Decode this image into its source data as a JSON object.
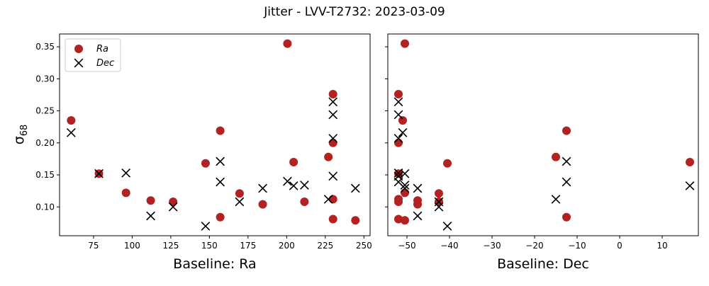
{
  "figure": {
    "title": "Jitter - LVV-T2732: 2023-03-09",
    "ylabel_main": "σ",
    "ylabel_sub": "68"
  },
  "colors": {
    "ra": "#b22222",
    "dec": "#000000"
  },
  "legend": {
    "placement": "upper-left",
    "entries": [
      "Ra",
      "Dec"
    ]
  },
  "chart_data": [
    {
      "type": "scatter",
      "xlabel": "Baseline: Ra",
      "ylabel": "σ68",
      "xlim": [
        53,
        254
      ],
      "ylim": [
        0.055,
        0.37
      ],
      "xticks": [
        75,
        100,
        125,
        150,
        175,
        200,
        225,
        250
      ],
      "xtick_labels": [
        "75",
        "100",
        "125",
        "150",
        "175",
        "200",
        "225",
        "250"
      ],
      "yticks": [
        0.1,
        0.15,
        0.2,
        0.25,
        0.3,
        0.35
      ],
      "ytick_labels": [
        "0.10",
        "0.15",
        "0.20",
        "0.25",
        "0.30",
        "0.35"
      ],
      "series": [
        {
          "name": "Ra",
          "marker": "circle",
          "points": [
            [
              60.5,
              0.235
            ],
            [
              78.5,
              0.152
            ],
            [
              96,
              0.122
            ],
            [
              112,
              0.11
            ],
            [
              126.5,
              0.108
            ],
            [
              147.5,
              0.168
            ],
            [
              157,
              0.219
            ],
            [
              157,
              0.084
            ],
            [
              169.5,
              0.121
            ],
            [
              184.5,
              0.104
            ],
            [
              200.5,
              0.355
            ],
            [
              204.5,
              0.17
            ],
            [
              211.5,
              0.108
            ],
            [
              227,
              0.178
            ],
            [
              230,
              0.276
            ],
            [
              230,
              0.2
            ],
            [
              230,
              0.112
            ],
            [
              230,
              0.081
            ],
            [
              244.5,
              0.079
            ]
          ]
        },
        {
          "name": "Dec",
          "marker": "x",
          "points": [
            [
              60.5,
              0.216
            ],
            [
              78.5,
              0.152
            ],
            [
              96,
              0.153
            ],
            [
              112,
              0.086
            ],
            [
              126.5,
              0.1
            ],
            [
              147.5,
              0.07
            ],
            [
              157,
              0.171
            ],
            [
              157,
              0.139
            ],
            [
              169.5,
              0.108
            ],
            [
              184.5,
              0.129
            ],
            [
              200.5,
              0.14
            ],
            [
              204.5,
              0.133
            ],
            [
              211.5,
              0.134
            ],
            [
              227,
              0.112
            ],
            [
              230,
              0.264
            ],
            [
              230,
              0.244
            ],
            [
              230,
              0.207
            ],
            [
              230,
              0.148
            ],
            [
              244.5,
              0.129
            ]
          ]
        }
      ]
    },
    {
      "type": "scatter",
      "xlabel": "Baseline: Dec",
      "ylabel": "",
      "xlim": [
        -54.5,
        18.5
      ],
      "ylim": [
        0.055,
        0.37
      ],
      "xticks": [
        -50,
        -40,
        -30,
        -20,
        -10,
        0,
        10
      ],
      "xtick_labels": [
        "−50",
        "−40",
        "−30",
        "−20",
        "−10",
        "0",
        "10"
      ],
      "yticks": [
        0.1,
        0.15,
        0.2,
        0.25,
        0.3,
        0.35
      ],
      "ytick_labels": [],
      "series": [
        {
          "name": "Ra",
          "marker": "circle",
          "points": [
            [
              -52,
              0.276
            ],
            [
              -52,
              0.2
            ],
            [
              -52,
              0.152
            ],
            [
              -52,
              0.112
            ],
            [
              -52,
              0.108
            ],
            [
              -52,
              0.081
            ],
            [
              -51,
              0.235
            ],
            [
              -50.5,
              0.355
            ],
            [
              -50.5,
              0.122
            ],
            [
              -50.5,
              0.079
            ],
            [
              -47.5,
              0.11
            ],
            [
              -47.5,
              0.104
            ],
            [
              -42.5,
              0.121
            ],
            [
              -42.5,
              0.108
            ],
            [
              -40.5,
              0.168
            ],
            [
              -15,
              0.178
            ],
            [
              -12.5,
              0.219
            ],
            [
              -12.5,
              0.084
            ],
            [
              16.5,
              0.17
            ]
          ]
        },
        {
          "name": "Dec",
          "marker": "x",
          "points": [
            [
              -52,
              0.264
            ],
            [
              -52,
              0.244
            ],
            [
              -52,
              0.207
            ],
            [
              -52,
              0.153
            ],
            [
              -52,
              0.148
            ],
            [
              -52,
              0.139
            ],
            [
              -51,
              0.216
            ],
            [
              -50.5,
              0.152
            ],
            [
              -50.5,
              0.134
            ],
            [
              -50.5,
              0.129
            ],
            [
              -47.5,
              0.129
            ],
            [
              -47.5,
              0.086
            ],
            [
              -42.5,
              0.108
            ],
            [
              -42.5,
              0.1
            ],
            [
              -40.5,
              0.07
            ],
            [
              -15,
              0.112
            ],
            [
              -12.5,
              0.171
            ],
            [
              -12.5,
              0.139
            ],
            [
              16.5,
              0.133
            ]
          ]
        }
      ]
    }
  ]
}
